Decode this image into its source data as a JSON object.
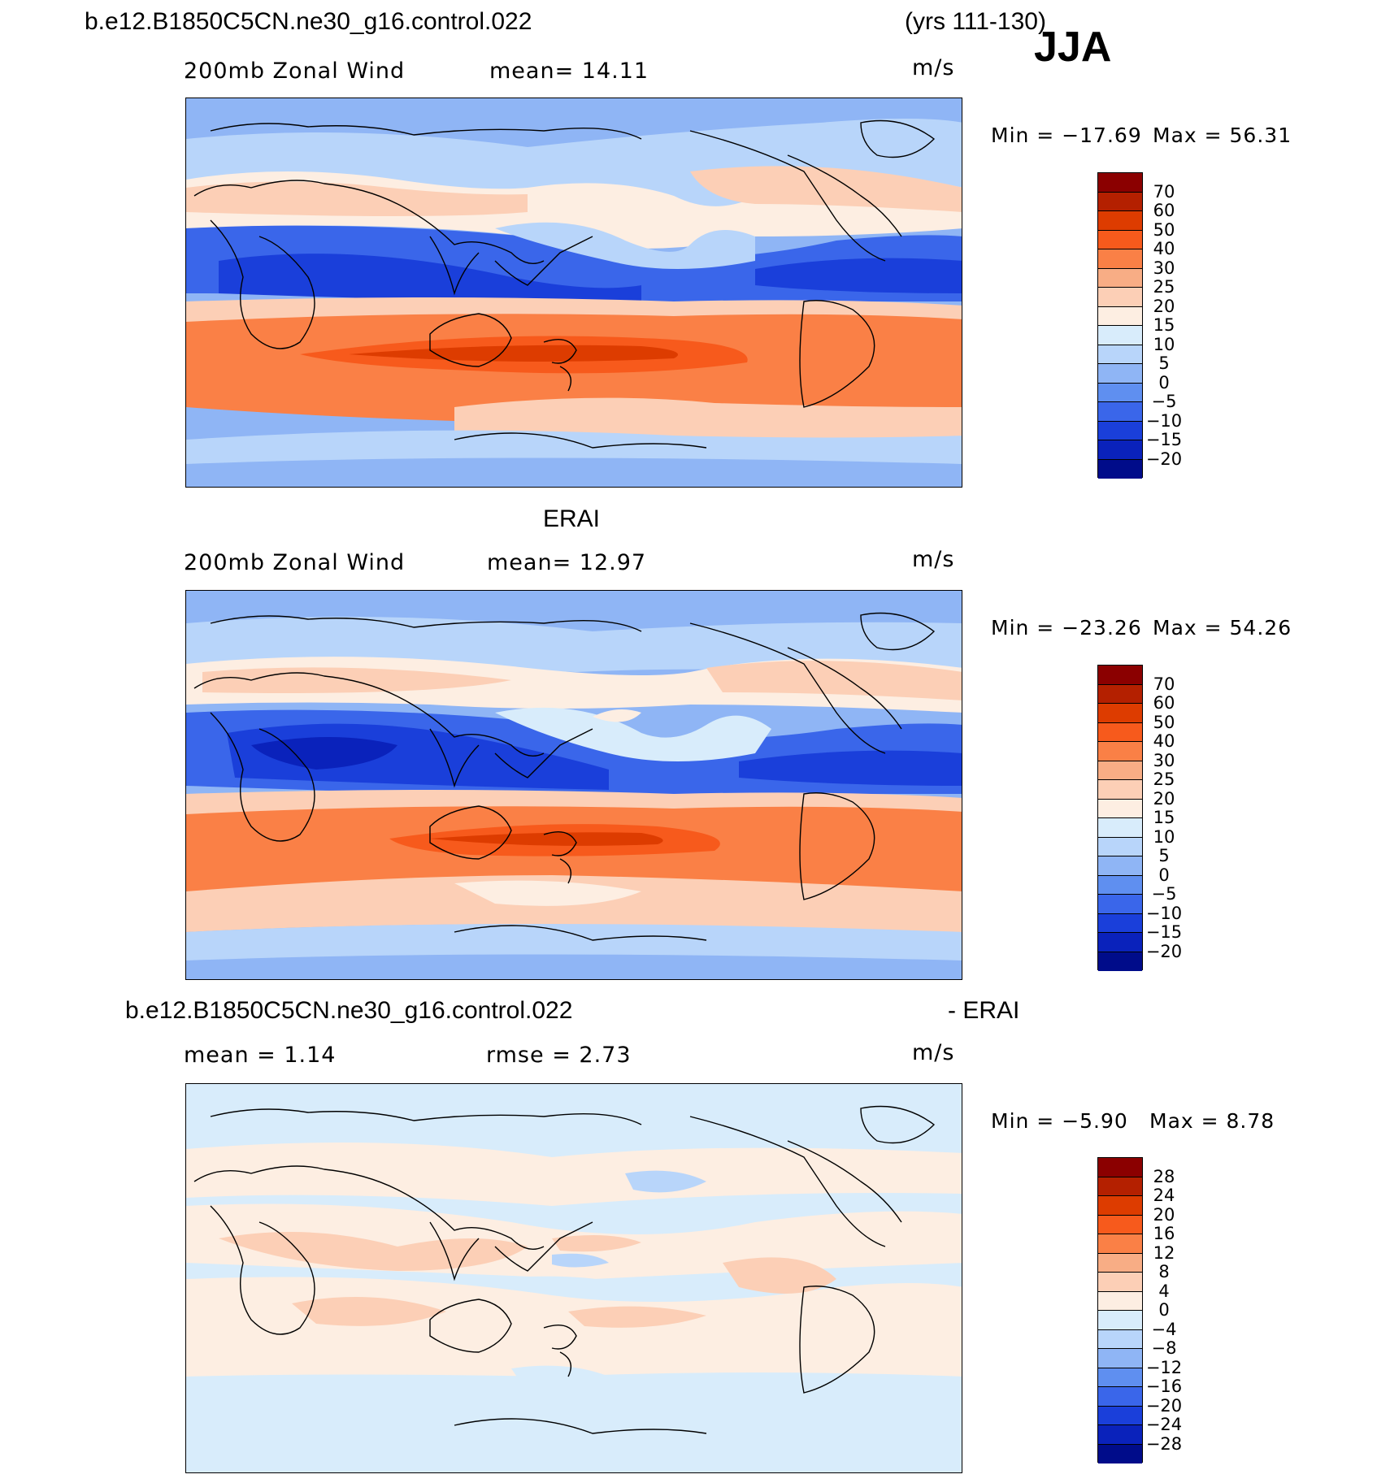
{
  "header": {
    "case_name": "b.e12.B1850C5CN.ne30_g16.control.022",
    "years": "(yrs 111-130)",
    "season": "JJA"
  },
  "panels": [
    {
      "id": "model",
      "section_title": "",
      "left_label": "200mb Zonal Wind",
      "mid_label": "mean=  14.11",
      "units": "m/s",
      "min_label": "Min = −17.69",
      "max_label": "Max =  56.31",
      "levels": [
        "70",
        "60",
        "50",
        "40",
        "30",
        "25",
        "20",
        "15",
        "10",
        "5",
        "0",
        "−5",
        "−10",
        "−15",
        "−20"
      ],
      "colors": [
        "#8b0000",
        "#b42000",
        "#dd3c00",
        "#f75a1c",
        "#fa8046",
        "#f8ad85",
        "#fccfb6",
        "#fdeee2",
        "#d8ecfb",
        "#b8d5fa",
        "#8fb5f5",
        "#5f8ff0",
        "#3a66ea",
        "#1a3fda",
        "#0a22bb",
        "#000c8a"
      ]
    },
    {
      "id": "obs",
      "section_title": "ERAI",
      "left_label": "200mb Zonal Wind",
      "mid_label": "mean=  12.97",
      "units": "m/s",
      "min_label": "Min = −23.26",
      "max_label": "Max =  54.26",
      "levels": [
        "70",
        "60",
        "50",
        "40",
        "30",
        "25",
        "20",
        "15",
        "10",
        "5",
        "0",
        "−5",
        "−10",
        "−15",
        "−20"
      ],
      "colors": [
        "#8b0000",
        "#b42000",
        "#dd3c00",
        "#f75a1c",
        "#fa8046",
        "#f8ad85",
        "#fccfb6",
        "#fdeee2",
        "#d8ecfb",
        "#b8d5fa",
        "#8fb5f5",
        "#5f8ff0",
        "#3a66ea",
        "#1a3fda",
        "#0a22bb",
        "#000c8a"
      ]
    },
    {
      "id": "diff",
      "section_title_left": "b.e12.B1850C5CN.ne30_g16.control.022",
      "section_title_right": "- ERAI",
      "left_label": "mean =   1.14",
      "mid_label": "rmse =   2.73",
      "units": "m/s",
      "min_label": "Min =  −5.90",
      "max_label": "Max =   8.78",
      "levels": [
        "28",
        "24",
        "20",
        "16",
        "12",
        "8",
        "4",
        "0",
        "−4",
        "−8",
        "−12",
        "−16",
        "−20",
        "−24",
        "−28"
      ],
      "colors": [
        "#8b0000",
        "#b42000",
        "#dd3c00",
        "#f75a1c",
        "#fa8046",
        "#f8ad85",
        "#fccfb6",
        "#fdeee2",
        "#d8ecfb",
        "#b8d5fa",
        "#8fb5f5",
        "#5f8ff0",
        "#3a66ea",
        "#1a3fda",
        "#0a22bb",
        "#000c8a"
      ]
    }
  ]
}
